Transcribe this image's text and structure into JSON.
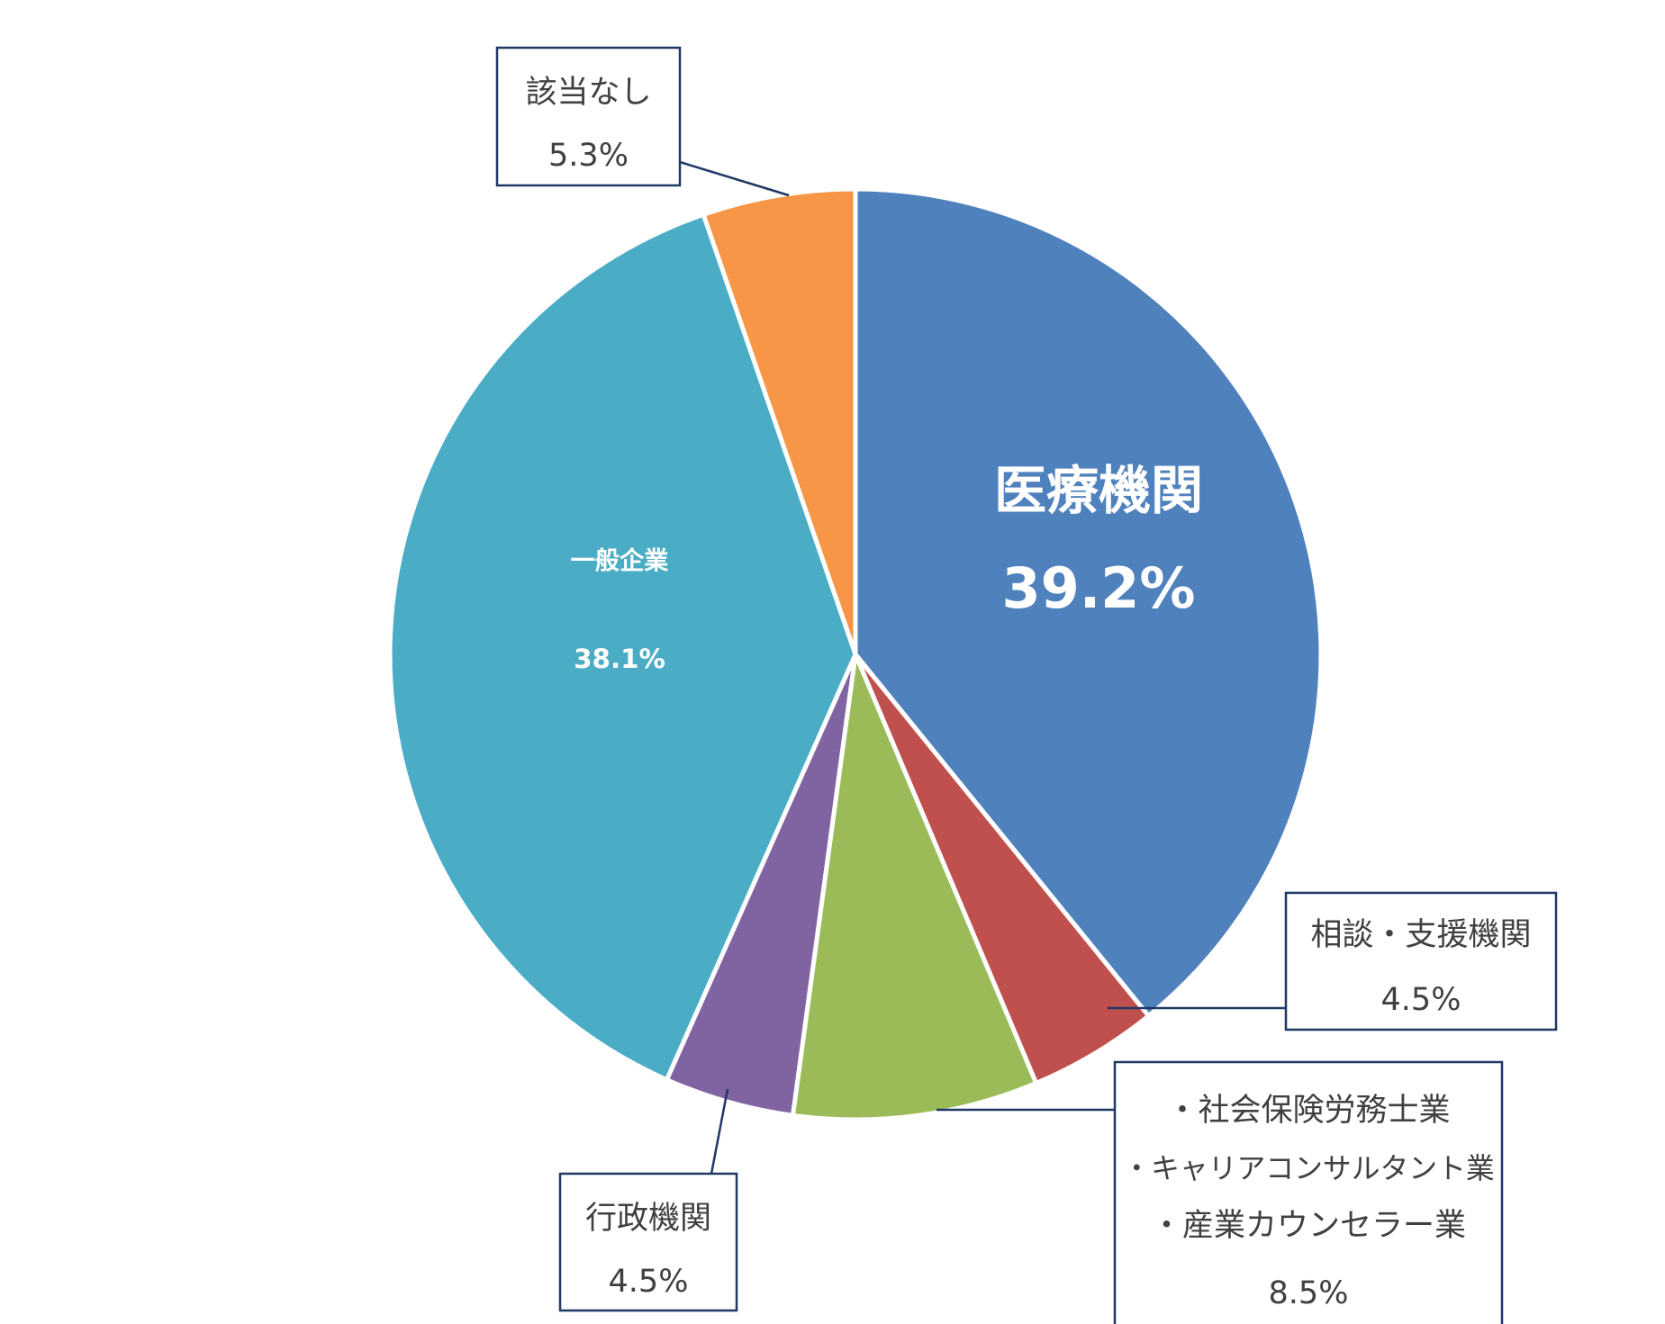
{
  "chart_data": {
    "type": "pie",
    "start_angle_deg": 0,
    "direction": "clockwise",
    "slices": [
      {
        "label": "医療機関",
        "value": 39.2,
        "value_label": "39.2%",
        "color": "#4f81bd",
        "label_style": "inside"
      },
      {
        "label": "相談・支援機関",
        "value": 4.5,
        "value_label": "4.5%",
        "color": "#c0504d",
        "label_style": "callout"
      },
      {
        "label": "・社会保険労務士業\n・キャリアコンサルタント業\n・産業カウンセラー業",
        "lines": [
          "・社会保険労務士業",
          "・キャリアコンサルタント業",
          "・産業カウンセラー業"
        ],
        "value": 8.5,
        "value_label": "8.5%",
        "color": "#9bbb59",
        "label_style": "callout"
      },
      {
        "label": "行政機関",
        "value": 4.5,
        "value_label": "4.5%",
        "color": "#8064a2",
        "label_style": "callout"
      },
      {
        "label": "一般企業",
        "value": 38.1,
        "value_label": "38.1%",
        "color": "#4bacc6",
        "label_style": "inside"
      },
      {
        "label": "該当なし",
        "value": 5.3,
        "value_label": "5.3%",
        "color": "#f79646",
        "label_style": "callout"
      }
    ]
  }
}
